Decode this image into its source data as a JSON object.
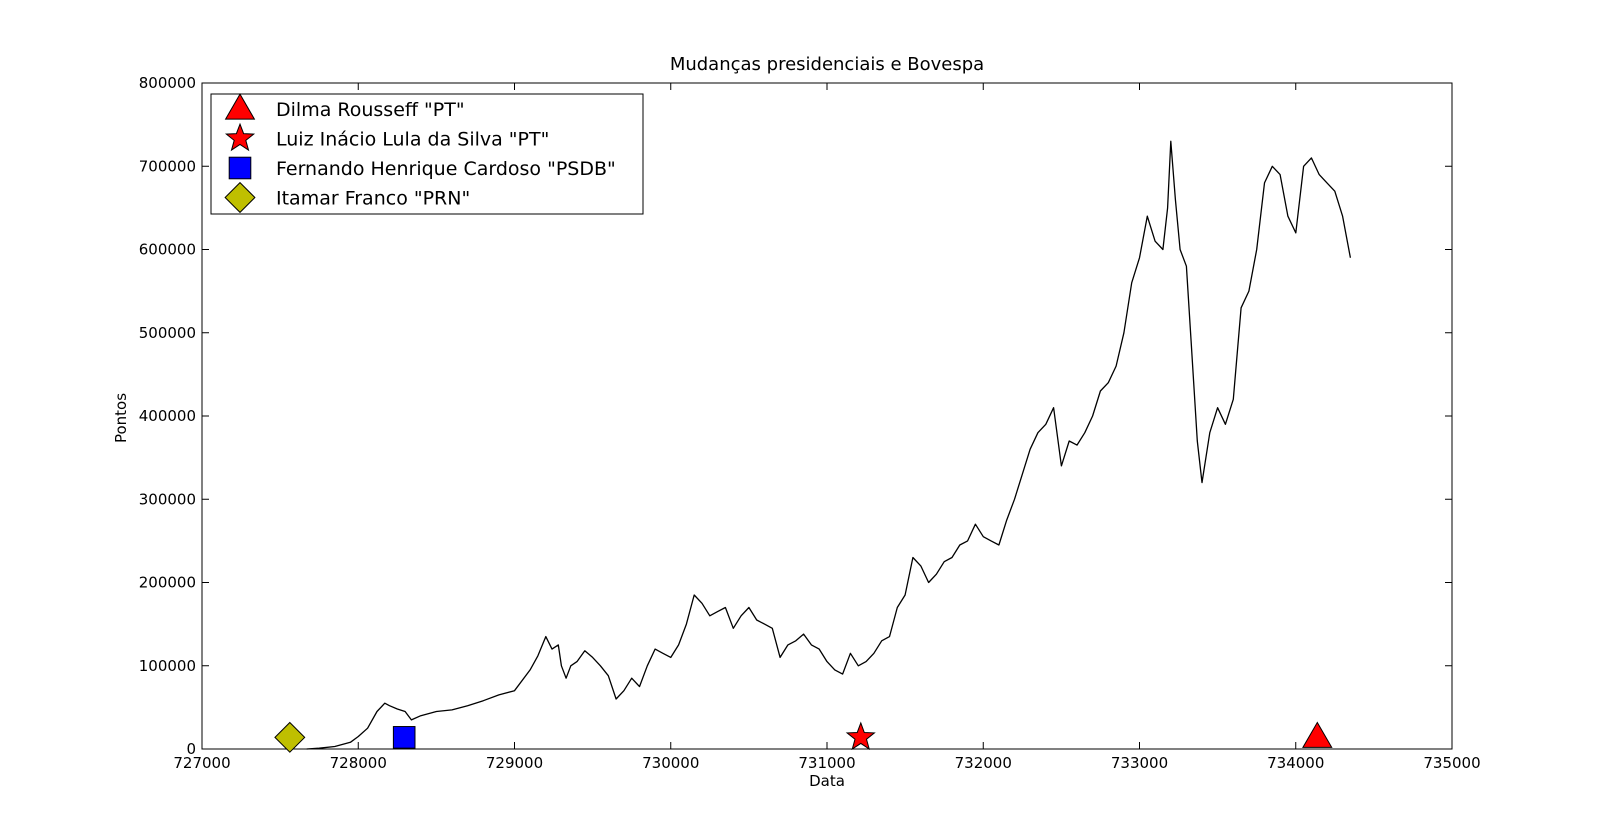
{
  "chart_data": {
    "type": "line",
    "title": "Mudanças presidenciais e Bovespa",
    "xlabel": "Data",
    "ylabel": "Pontos",
    "xlim": [
      727000,
      735000
    ],
    "ylim": [
      0,
      800000
    ],
    "xticks": [
      727000,
      728000,
      729000,
      730000,
      731000,
      732000,
      733000,
      734000,
      735000
    ],
    "yticks": [
      0,
      100000,
      200000,
      300000,
      400000,
      500000,
      600000,
      700000,
      800000
    ],
    "grid": false,
    "legend_position": "top-left",
    "series": [
      {
        "color": "#000000",
        "x": [
          727670,
          727750,
          727850,
          727950,
          728000,
          728060,
          728120,
          728170,
          728200,
          728250,
          728300,
          728340,
          728400,
          728500,
          728600,
          728700,
          728800,
          728900,
          729000,
          729100,
          729150,
          729200,
          729240,
          729280,
          729300,
          729330,
          729360,
          729400,
          729450,
          729500,
          729550,
          729600,
          729650,
          729700,
          729750,
          729800,
          729850,
          729900,
          729950,
          730000,
          730050,
          730100,
          730150,
          730200,
          730250,
          730300,
          730350,
          730400,
          730450,
          730500,
          730550,
          730600,
          730650,
          730700,
          730750,
          730800,
          730850,
          730900,
          730950,
          731000,
          731050,
          731100,
          731150,
          731200,
          731250,
          731300,
          731350,
          731400,
          731450,
          731500,
          731550,
          731600,
          731650,
          731700,
          731750,
          731800,
          731850,
          731900,
          731950,
          732000,
          732050,
          732100,
          732150,
          732200,
          732250,
          732300,
          732350,
          732400,
          732450,
          732500,
          732550,
          732600,
          732650,
          732700,
          732750,
          732800,
          732850,
          732900,
          732950,
          733000,
          733050,
          733100,
          733150,
          733180,
          733200,
          733230,
          733260,
          733300,
          733330,
          733350,
          733370,
          733400,
          733450,
          733500,
          733550,
          733600,
          733650,
          733700,
          733750,
          733800,
          733850,
          733900,
          733950,
          734000,
          734050,
          734100,
          734150,
          734200,
          734250,
          734300,
          734350
        ],
        "values": [
          0,
          1000,
          3000,
          8000,
          15000,
          25000,
          45000,
          55000,
          52000,
          48000,
          45000,
          35000,
          40000,
          45000,
          47000,
          52000,
          58000,
          65000,
          70000,
          95000,
          112000,
          135000,
          120000,
          125000,
          100000,
          85000,
          100000,
          105000,
          118000,
          110000,
          100000,
          88000,
          60000,
          70000,
          85000,
          75000,
          100000,
          120000,
          115000,
          110000,
          125000,
          150000,
          185000,
          175000,
          160000,
          165000,
          170000,
          145000,
          160000,
          170000,
          155000,
          150000,
          145000,
          110000,
          125000,
          130000,
          138000,
          125000,
          120000,
          105000,
          95000,
          90000,
          115000,
          100000,
          105000,
          115000,
          130000,
          135000,
          170000,
          185000,
          230000,
          220000,
          200000,
          210000,
          225000,
          230000,
          245000,
          250000,
          270000,
          255000,
          250000,
          245000,
          275000,
          300000,
          330000,
          360000,
          380000,
          390000,
          410000,
          340000,
          370000,
          365000,
          380000,
          400000,
          430000,
          440000,
          460000,
          500000,
          560000,
          590000,
          640000,
          610000,
          600000,
          650000,
          730000,
          660000,
          600000,
          580000,
          490000,
          430000,
          370000,
          320000,
          380000,
          410000,
          390000,
          420000,
          530000,
          550000,
          600000,
          680000,
          700000,
          690000,
          640000,
          620000,
          700000,
          710000,
          690000,
          680000,
          670000,
          640000,
          590000
        ]
      }
    ],
    "markers": [
      {
        "name": "Dilma Rousseff \"PT\"",
        "shape": "triangle",
        "color": "#ff0000",
        "x": 734138,
        "y": 14000
      },
      {
        "name": "Luiz Inácio Lula da Silva \"PT\"",
        "shape": "star",
        "color": "#ff0000",
        "x": 731216,
        "y": 14000
      },
      {
        "name": "Fernando Henrique Cardoso \"PSDB\"",
        "shape": "square",
        "color": "#0000ff",
        "x": 728294,
        "y": 14000
      },
      {
        "name": "Itamar Franco \"PRN\"",
        "shape": "diamond",
        "color": "#bfbf00",
        "x": 727562,
        "y": 14000
      }
    ]
  }
}
